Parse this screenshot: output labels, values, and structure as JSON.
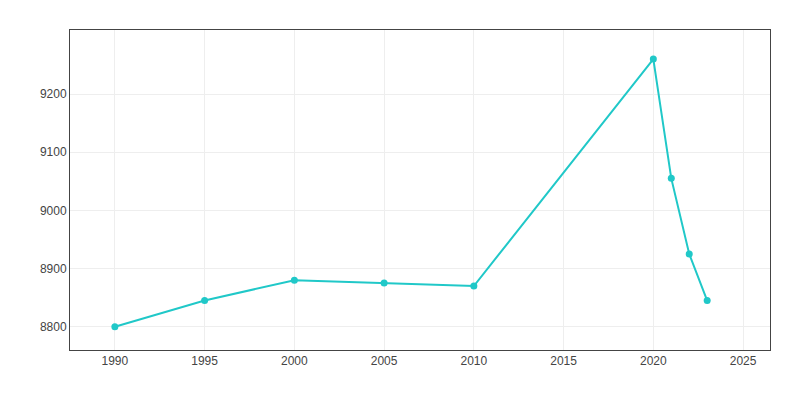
{
  "chart_data": {
    "type": "line",
    "x": [
      1990,
      1995,
      2000,
      2005,
      2010,
      2020,
      2021,
      2022,
      2023
    ],
    "values": [
      8800,
      8845,
      8880,
      8875,
      8870,
      9260,
      9055,
      8925,
      8845
    ],
    "color": "#20C8C8",
    "marker": "circle",
    "xlim": [
      1987.5,
      2026.5
    ],
    "ylim": [
      8760,
      9310
    ],
    "xticks": [
      1990,
      1995,
      2000,
      2005,
      2010,
      2015,
      2020,
      2025
    ],
    "yticks": [
      8800,
      8900,
      9000,
      9100,
      9200
    ],
    "grid": true
  }
}
